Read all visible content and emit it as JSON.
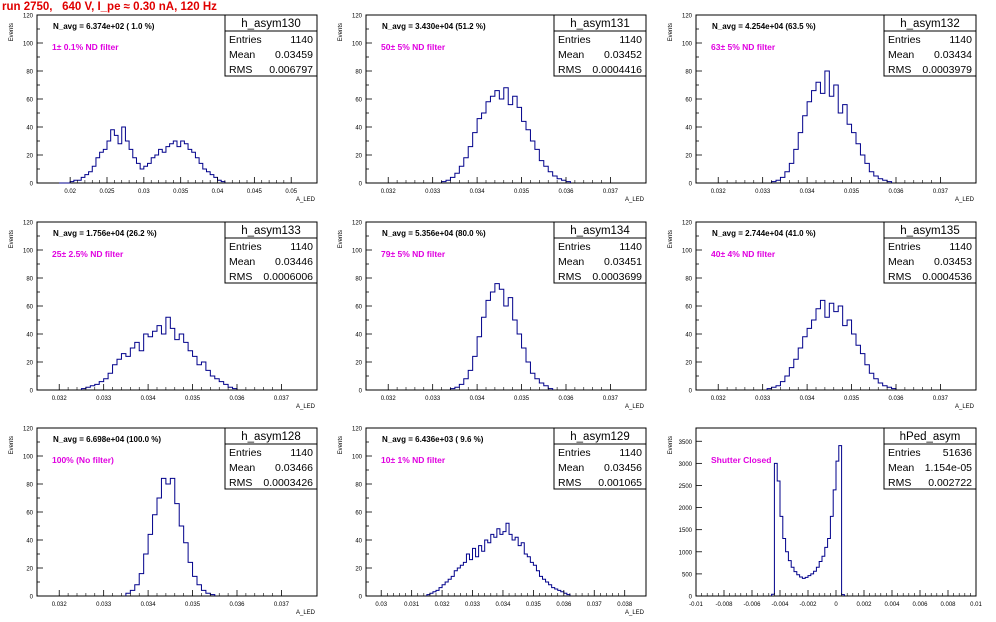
{
  "page_title": "run 2750,   640 V, I_pe ≈ 0.30 nA, 120 Hz",
  "colors": {
    "title": "#e00000",
    "annotation": "#e000e0",
    "histogram": "#00008b",
    "axes": "#000000"
  },
  "stats_labels": {
    "entries": "Entries",
    "mean": "Mean",
    "rms": "RMS"
  },
  "chart_data": [
    {
      "type": "histogram",
      "name": "h_asym130",
      "navg": "N_avg = 6.374e+02 ( 1.0 %)",
      "filter": "1± 0.1% ND filter",
      "entries": "1140",
      "mean": "0.03459",
      "rms": "0.006797",
      "ylabel": "Events",
      "xlabel": "A_LED",
      "xlim": [
        0.0155,
        0.0535
      ],
      "ylim": [
        0,
        120
      ],
      "xticks": [
        0.02,
        0.025,
        0.03,
        0.035,
        0.04,
        0.045,
        0.05
      ],
      "xticklabels": [
        "0.02",
        "0.025",
        "0.03",
        "0.035",
        "0.04",
        "0.045",
        "0.05"
      ],
      "yticks": [
        0,
        10,
        20,
        30,
        40,
        50,
        60,
        70,
        80,
        90,
        100,
        110,
        120
      ],
      "yticklabels": [
        "0",
        "",
        "20",
        "",
        "40",
        "",
        "60",
        "",
        "80",
        "",
        "100",
        "",
        "120"
      ],
      "bins": {
        "start": 0.0185,
        "width": 0.0005,
        "counts": [
          0,
          0,
          0,
          1,
          2,
          2,
          4,
          6,
          8,
          12,
          18,
          22,
          24,
          30,
          38,
          34,
          28,
          40,
          30,
          24,
          18,
          14,
          10,
          12,
          14,
          18,
          20,
          24,
          22,
          26,
          28,
          30,
          26,
          30,
          28,
          24,
          22,
          18,
          14,
          10,
          8,
          6,
          4,
          2,
          1
        ]
      }
    },
    {
      "type": "histogram",
      "name": "h_asym131",
      "navg": "N_avg = 3.430e+04 (51.2 %)",
      "filter": "50± 5% ND filter",
      "entries": "1140",
      "mean": "0.03452",
      "rms": "0.0004416",
      "ylabel": "Events",
      "xlabel": "A_LED",
      "xlim": [
        0.0315,
        0.0378
      ],
      "ylim": [
        0,
        120
      ],
      "xticks": [
        0.032,
        0.033,
        0.034,
        0.035,
        0.036,
        0.037
      ],
      "xticklabels": [
        "0.032",
        "0.033",
        "0.034",
        "0.035",
        "0.036",
        "0.037"
      ],
      "yticks": [
        0,
        10,
        20,
        30,
        40,
        50,
        60,
        70,
        80,
        90,
        100,
        110,
        120
      ],
      "yticklabels": [
        "0",
        "",
        "20",
        "",
        "40",
        "",
        "60",
        "",
        "80",
        "",
        "100",
        "",
        "120"
      ],
      "bins": {
        "start": 0.0332,
        "width": 0.0001,
        "counts": [
          1,
          2,
          4,
          7,
          12,
          18,
          26,
          36,
          46,
          50,
          58,
          62,
          66,
          60,
          68,
          56,
          62,
          54,
          44,
          38,
          30,
          24,
          16,
          12,
          8,
          5,
          3,
          2,
          1
        ]
      }
    },
    {
      "type": "histogram",
      "name": "h_asym132",
      "navg": "N_avg = 4.254e+04 (63.5 %)",
      "filter": "63± 5% ND filter",
      "entries": "1140",
      "mean": "0.03434",
      "rms": "0.0003979",
      "ylabel": "Events",
      "xlabel": "A_LED",
      "xlim": [
        0.0315,
        0.0378
      ],
      "ylim": [
        0,
        120
      ],
      "xticks": [
        0.032,
        0.033,
        0.034,
        0.035,
        0.036,
        0.037
      ],
      "xticklabels": [
        "0.032",
        "0.033",
        "0.034",
        "0.035",
        "0.036",
        "0.037"
      ],
      "yticks": [
        0,
        10,
        20,
        30,
        40,
        50,
        60,
        70,
        80,
        90,
        100,
        110,
        120
      ],
      "yticklabels": [
        "0",
        "",
        "20",
        "",
        "40",
        "",
        "60",
        "",
        "80",
        "",
        "100",
        "",
        "120"
      ],
      "bins": {
        "start": 0.0332,
        "width": 0.0001,
        "counts": [
          1,
          2,
          4,
          8,
          14,
          24,
          36,
          48,
          58,
          66,
          72,
          64,
          80,
          62,
          70,
          50,
          56,
          42,
          36,
          28,
          20,
          14,
          8,
          5,
          3,
          2,
          1
        ]
      }
    },
    {
      "type": "histogram",
      "name": "h_asym133",
      "navg": "N_avg = 1.756e+04 (26.2 %)",
      "filter": "25± 2.5% ND filter",
      "entries": "1140",
      "mean": "0.03446",
      "rms": "0.0006006",
      "ylabel": "Events",
      "xlabel": "A_LED",
      "xlim": [
        0.0315,
        0.0378
      ],
      "ylim": [
        0,
        120
      ],
      "xticks": [
        0.032,
        0.033,
        0.034,
        0.035,
        0.036,
        0.037
      ],
      "xticklabels": [
        "0.032",
        "0.033",
        "0.034",
        "0.035",
        "0.036",
        "0.037"
      ],
      "yticks": [
        0,
        10,
        20,
        30,
        40,
        50,
        60,
        70,
        80,
        90,
        100,
        110,
        120
      ],
      "yticklabels": [
        "0",
        "",
        "20",
        "",
        "40",
        "",
        "60",
        "",
        "80",
        "",
        "100",
        "",
        "120"
      ],
      "bins": {
        "start": 0.0325,
        "width": 0.0001,
        "counts": [
          1,
          2,
          3,
          4,
          6,
          8,
          12,
          18,
          22,
          26,
          24,
          30,
          34,
          28,
          40,
          38,
          42,
          46,
          40,
          52,
          44,
          36,
          40,
          34,
          28,
          24,
          18,
          20,
          14,
          10,
          8,
          6,
          4,
          2,
          1
        ]
      }
    },
    {
      "type": "histogram",
      "name": "h_asym134",
      "navg": "N_avg = 5.356e+04 (80.0 %)",
      "filter": "79± 5% ND filter",
      "entries": "1140",
      "mean": "0.03451",
      "rms": "0.0003699",
      "ylabel": "Events",
      "xlabel": "A_LED",
      "xlim": [
        0.0315,
        0.0378
      ],
      "ylim": [
        0,
        120
      ],
      "xticks": [
        0.032,
        0.033,
        0.034,
        0.035,
        0.036,
        0.037
      ],
      "xticklabels": [
        "0.032",
        "0.033",
        "0.034",
        "0.035",
        "0.036",
        "0.037"
      ],
      "yticks": [
        0,
        10,
        20,
        30,
        40,
        50,
        60,
        70,
        80,
        90,
        100,
        110,
        120
      ],
      "yticklabels": [
        "0",
        "",
        "20",
        "",
        "40",
        "",
        "60",
        "",
        "80",
        "",
        "100",
        "",
        "120"
      ],
      "bins": {
        "start": 0.0334,
        "width": 0.0001,
        "counts": [
          1,
          2,
          4,
          8,
          14,
          24,
          38,
          52,
          64,
          70,
          76,
          72,
          60,
          66,
          50,
          40,
          30,
          20,
          12,
          8,
          5,
          3,
          1
        ]
      }
    },
    {
      "type": "histogram",
      "name": "h_asym135",
      "navg": "N_avg = 2.744e+04 (41.0 %)",
      "filter": "40± 4% ND filter",
      "entries": "1140",
      "mean": "0.03453",
      "rms": "0.0004536",
      "ylabel": "Events",
      "xlabel": "A_LED",
      "xlim": [
        0.0315,
        0.0378
      ],
      "ylim": [
        0,
        120
      ],
      "xticks": [
        0.032,
        0.033,
        0.034,
        0.035,
        0.036,
        0.037
      ],
      "xticklabels": [
        "0.032",
        "0.033",
        "0.034",
        "0.035",
        "0.036",
        "0.037"
      ],
      "yticks": [
        0,
        10,
        20,
        30,
        40,
        50,
        60,
        70,
        80,
        90,
        100,
        110,
        120
      ],
      "yticklabels": [
        "0",
        "",
        "20",
        "",
        "40",
        "",
        "60",
        "",
        "80",
        "",
        "100",
        "",
        "120"
      ],
      "bins": {
        "start": 0.0331,
        "width": 0.0001,
        "counts": [
          1,
          2,
          3,
          6,
          10,
          16,
          22,
          30,
          38,
          44,
          50,
          58,
          64,
          52,
          62,
          56,
          60,
          46,
          50,
          40,
          32,
          26,
          18,
          12,
          8,
          5,
          3,
          2,
          1
        ]
      }
    },
    {
      "type": "histogram",
      "name": "h_asym128",
      "navg": "N_avg = 6.698e+04 (100.0 %)",
      "filter": "100% (No filter)",
      "entries": "1140",
      "mean": "0.03466",
      "rms": "0.0003426",
      "ylabel": "Events",
      "xlabel": "A_LED",
      "xlim": [
        0.0315,
        0.0378
      ],
      "ylim": [
        0,
        120
      ],
      "xticks": [
        0.032,
        0.033,
        0.034,
        0.035,
        0.036,
        0.037
      ],
      "xticklabels": [
        "0.032",
        "0.033",
        "0.034",
        "0.035",
        "0.036",
        "0.037"
      ],
      "yticks": [
        0,
        10,
        20,
        30,
        40,
        50,
        60,
        70,
        80,
        90,
        100,
        110,
        120
      ],
      "yticklabels": [
        "0",
        "",
        "20",
        "",
        "40",
        "",
        "60",
        "",
        "80",
        "",
        "100",
        "",
        "120"
      ],
      "bins": {
        "start": 0.0335,
        "width": 0.0001,
        "counts": [
          2,
          4,
          8,
          16,
          30,
          44,
          58,
          70,
          84,
          80,
          84,
          66,
          50,
          38,
          24,
          14,
          8,
          4,
          2,
          1
        ]
      }
    },
    {
      "type": "histogram",
      "name": "h_asym129",
      "navg": "N_avg = 6.436e+03 ( 9.6 %)",
      "filter": "10± 1% ND filter",
      "entries": "1140",
      "mean": "0.03456",
      "rms": "0.001065",
      "ylabel": "Events",
      "xlabel": "A_LED",
      "xlim": [
        0.0295,
        0.0387
      ],
      "ylim": [
        0,
        120
      ],
      "xticks": [
        0.03,
        0.031,
        0.032,
        0.033,
        0.034,
        0.035,
        0.036,
        0.037,
        0.038
      ],
      "xticklabels": [
        "0.03",
        "0.031",
        "0.032",
        "0.033",
        "0.034",
        "0.035",
        "0.036",
        "0.037",
        "0.038"
      ],
      "yticks": [
        0,
        10,
        20,
        30,
        40,
        50,
        60,
        70,
        80,
        90,
        100,
        110,
        120
      ],
      "yticklabels": [
        "0",
        "",
        "20",
        "",
        "40",
        "",
        "60",
        "",
        "80",
        "",
        "100",
        "",
        "120"
      ],
      "bins": {
        "start": 0.0315,
        "width": 0.0001,
        "counts": [
          1,
          2,
          3,
          4,
          6,
          8,
          10,
          12,
          14,
          18,
          20,
          22,
          24,
          30,
          26,
          34,
          28,
          36,
          32,
          40,
          38,
          44,
          42,
          48,
          44,
          46,
          52,
          44,
          40,
          42,
          36,
          38,
          30,
          28,
          24,
          22,
          18,
          14,
          12,
          10,
          8,
          6,
          5,
          4,
          3,
          2,
          1
        ]
      }
    },
    {
      "type": "histogram",
      "name": "hPed_asym",
      "navg": "",
      "filter": "Shutter Closed",
      "entries": "51636",
      "mean": "1.154e-05",
      "rms": "0.002722",
      "ylabel": "Events",
      "xlabel": "",
      "xlim": [
        -0.01,
        0.01
      ],
      "ylim": [
        0,
        3800
      ],
      "xticks": [
        -0.01,
        -0.008,
        -0.006,
        -0.004,
        -0.002,
        0,
        0.002,
        0.004,
        0.006,
        0.008,
        0.01
      ],
      "xticklabels": [
        "-0.01",
        "-0.008",
        "-0.006",
        "-0.004",
        "-0.002",
        "0",
        "0.002",
        "0.004",
        "0.006",
        "0.008",
        "0.01"
      ],
      "yticks": [
        0,
        500,
        1000,
        1500,
        2000,
        2500,
        3000,
        3500
      ],
      "yticklabels": [
        "0",
        "500",
        "1000",
        "1500",
        "2000",
        "2500",
        "3000",
        "3500"
      ],
      "bins": {
        "start": -0.0046,
        "width": 0.0002,
        "counts": [
          40,
          3000,
          2600,
          1800,
          1300,
          1000,
          800,
          650,
          550,
          480,
          430,
          400,
          420,
          460,
          500,
          560,
          650,
          780,
          900,
          1100,
          1300,
          1800,
          2400,
          3050,
          3400,
          30
        ]
      }
    }
  ]
}
